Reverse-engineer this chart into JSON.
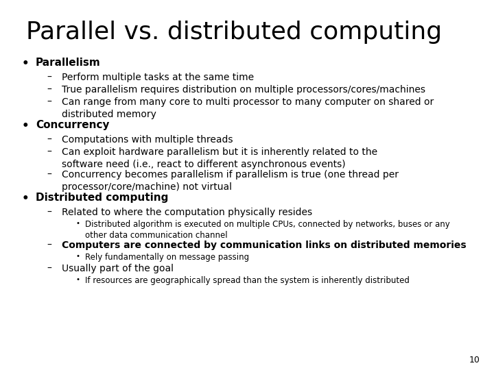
{
  "title": "Parallel vs. distributed computing",
  "background_color": "#ffffff",
  "text_color": "#000000",
  "page_number": "10",
  "title_fontsize": 26,
  "bullet_fontsize": 11,
  "sub_fontsize": 10,
  "subsub_fontsize": 8.5,
  "content": [
    {
      "type": "bullet",
      "bold": true,
      "text": "Parallelism"
    },
    {
      "type": "dash",
      "text": "Perform multiple tasks at the same time"
    },
    {
      "type": "dash",
      "text": "True parallelism requires distribution on multiple processors/cores/machines"
    },
    {
      "type": "dash",
      "text": "Can range from many core to multi processor to many computer on shared or distributed memory",
      "wrap": true
    },
    {
      "type": "bullet",
      "bold": true,
      "text": "Concurrency"
    },
    {
      "type": "dash",
      "text": "Computations with multiple threads"
    },
    {
      "type": "dash",
      "text": "Can exploit hardware parallelism but it is inherently related to the software need (i.e., react to different asynchronous events)",
      "wrap": true
    },
    {
      "type": "dash",
      "text": "Concurrency becomes parallelism if parallelism is true (one thread per processor/core/machine) not virtual",
      "wrap": true
    },
    {
      "type": "bullet",
      "bold": true,
      "text": "Distributed computing"
    },
    {
      "type": "dash",
      "text": "Related to where the computation physically resides"
    },
    {
      "type": "dot",
      "text": "Distributed algorithm is executed on multiple CPUs, connected by networks, buses or any other data communication channel",
      "wrap": true
    },
    {
      "type": "dash",
      "bold": true,
      "text": "Computers are connected by communication links on distributed memories"
    },
    {
      "type": "dot",
      "text": "Rely fundamentally on message passing"
    },
    {
      "type": "dash",
      "text": "Usually part of the goal"
    },
    {
      "type": "dot",
      "text": "If resources are geographically spread than the system is inherently distributed"
    }
  ]
}
